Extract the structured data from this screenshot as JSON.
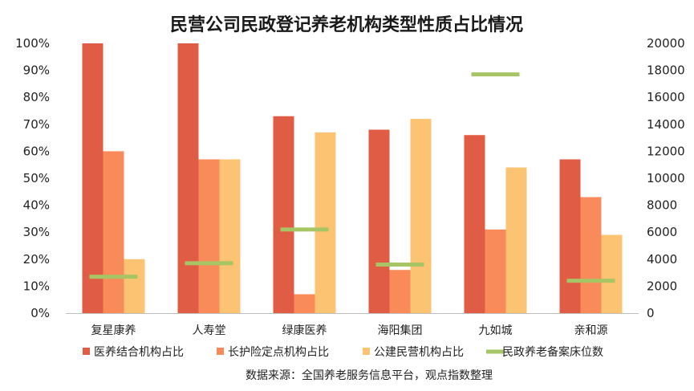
{
  "chart_data": {
    "type": "bar",
    "title": "民营公司民政登记养老机构类型性质占比情况",
    "categories": [
      "复星康养",
      "人寿堂",
      "绿康医养",
      "海阳集团",
      "九如城",
      "亲和源"
    ],
    "series": [
      {
        "name": "医养结合机构占比",
        "kind": "bar",
        "axis": "left",
        "color": "#e05c45",
        "values": [
          100,
          100,
          73,
          68,
          66,
          57
        ]
      },
      {
        "name": "长护险定点机构占比",
        "kind": "bar",
        "axis": "left",
        "color": "#f98b5b",
        "values": [
          60,
          57,
          7,
          16,
          31,
          43
        ]
      },
      {
        "name": "公建民营机构占比",
        "kind": "bar",
        "axis": "left",
        "color": "#fbc372",
        "values": [
          20,
          57,
          67,
          72,
          54,
          29
        ]
      },
      {
        "name": "民政养老备案床位数",
        "kind": "marker",
        "axis": "right",
        "color": "#a7c565",
        "values": [
          2700,
          3700,
          6200,
          3600,
          17700,
          2400
        ]
      }
    ],
    "y_left": {
      "min": 0,
      "max": 100,
      "ticks": [
        "0%",
        "10%",
        "20%",
        "30%",
        "40%",
        "50%",
        "60%",
        "70%",
        "80%",
        "90%",
        "100%"
      ]
    },
    "y_right": {
      "min": 0,
      "max": 20000,
      "ticks": [
        "0",
        "2000",
        "4000",
        "6000",
        "8000",
        "10000",
        "12000",
        "14000",
        "16000",
        "18000",
        "20000"
      ]
    },
    "grid": false,
    "legend_position": "bottom"
  },
  "source": "数据来源：全国养老服务信息平台，观点指数整理"
}
